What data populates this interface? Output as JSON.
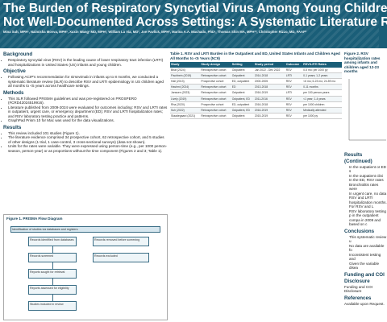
{
  "header": {
    "title_line1": "The Burden of Respiratory Syncytial Virus Among Young Children in the",
    "title_line2": "Not Well-Documented Across Settings: A Systematic Literature Review",
    "authors": "Mina Suh, MPH¹, Naimisha Movva, MPH¹, Xuxin Wang¹ MD, MPH¹, William La Via, MD², Joe Pavlick, MPH², Marina A.A. Machado, PhD¹, Thomas Shin MA, MPH²*, Christopher Rizzo, MD, FAAP²"
  },
  "left": {
    "background_h": "Background",
    "background_items": [
      "Respiratory syncytial virus (RSV) is the leading cause of lower respiratory tract infection (LRTI) and hospitalizations in United States (US) infants and young children."
    ],
    "objective_h": "Objective",
    "objective_items": [
      "Following ACIP's recommendation for nirsevimab in infants up to 8 months, we conducted a systematic literature review (SLR) to describe RSV and LRTI epidemiology in US children aged all months to <5 years across healthcare settings."
    ],
    "methods_h": "Methods",
    "methods_items": [
      "This SLR followed PRISMA guidelines and was pre-registered on PROSPERO (#CRD42024519916).",
      "Literature published from 2009-2024 were evaluated for outcomes including: RSV and LRTI rates in outpatient, urgent care, or emergency department (ED); RSV and LRTI hospitalization rates; and RSV laboratory testing practice and patterns.",
      "GraphPad Prism 10 for Mac was used for the data visualizations."
    ],
    "results_h": "Results",
    "results_items": [
      "This review included 101 studies (Figure 1).",
      "The literature evidence comprised 34 prospective cohort, 62 retrospective cohort, and 5 studies of other designs (1 trial, 1 case-control, 3 cross-sectional surveys) (data not shown).",
      "Units for the rates were variable. They were expressed using person-time (e.g., per 1000 person-season, person-year) or as proportions without the time component (Figures 2 and 3; Table 1)."
    ]
  },
  "figure1": {
    "title": "Figure 1. PRISMA Flow Diagram",
    "boxes": [
      "Identification of studies via databases and registers",
      "Records identified from databases",
      "Records removed before screening",
      "Records screened",
      "Records excluded",
      "Reports sought for retrieval",
      "Reports assessed for eligibility",
      "Studies included in review"
    ]
  },
  "table1": {
    "caption": "Table 1. RSV and LRTI Burden in the Outpatient and ED, United States Infants and Children Aged All Months to <5 Years (N=9)",
    "headers": [
      "Study",
      "Study design",
      "Setting",
      "Study period",
      "Outcome",
      "RSV/LRTI Rates"
    ],
    "rows": [
      [
        "Bhat (2024)",
        "Retrospective cohort",
        "Outpatient",
        "Jan 2022 - Dec 2022",
        "RSV",
        "0-5 mo: per 1000 py"
      ],
      [
        "Fischbein (2019)",
        "Retrospective cohort",
        "Outpatient",
        "2014-2018",
        "LRTI",
        "0-1 years; 1-2 years"
      ],
      [
        "Hall (2013)",
        "Prospective cohort",
        "ED, outpatient",
        "2000-2005",
        "RSV",
        "<6 mo; 6-23 mo; 24-59 mo"
      ],
      [
        "Hashmi (2024)",
        "Retrospective cohort",
        "ED",
        "2013-2018",
        "RSV",
        "0-11 months"
      ],
      [
        "Janssen (2023)",
        "Retrospective cohort",
        "Outpatient",
        "2016-2019",
        "LRTI",
        "per 100 person-years"
      ],
      [
        "Lively (2019)",
        "Retrospective cohort",
        "Outpatient, ED",
        "2011-2016",
        "RSV",
        "<1 year; 1-4 years"
      ],
      [
        "Rha (2020)",
        "Prospective cohort",
        "ED, outpatient",
        "2016-2018",
        "RSV",
        "per 1000 children"
      ],
      [
        "Suh (2022)",
        "Retrospective cohort",
        "Outpatient, ED",
        "2016-2019",
        "RSV",
        "Medically attended"
      ],
      [
        "Staadegaard (2021)",
        "Retrospective cohort",
        "Outpatient",
        "2015-2019",
        "RSV",
        "per 1000 py"
      ]
    ]
  },
  "right": {
    "fig2_title": "Figure 2. RSV hospitalization rates among infants and children aged 12-23 months",
    "results_cont_h": "Results (Continued)",
    "results_cont_items": [
      "In the outpatient or ED s",
      "In the outpatient clini",
      "In the ED, RSV rates",
      "Bronchiolitis rates were",
      "In urgent care, no data",
      "RSV and LRTI hospitalization months. For RSV and L",
      "RSV laboratory testing p in the outpatient compa in 2009 and based on c"
    ],
    "conclusions_h": "Conclusions",
    "conclusions_items": [
      "This systematic review u",
      "No data are available fo",
      "Inconsistent testing and",
      "Given the variable disea"
    ],
    "funding_h": "Funding and COI Disclosure",
    "funding_text": "Funding and COI Disclosure",
    "references_h": "References",
    "references_text": "Available upon Request."
  },
  "colors": {
    "header": "#1a5e78",
    "heading": "#123f57"
  }
}
